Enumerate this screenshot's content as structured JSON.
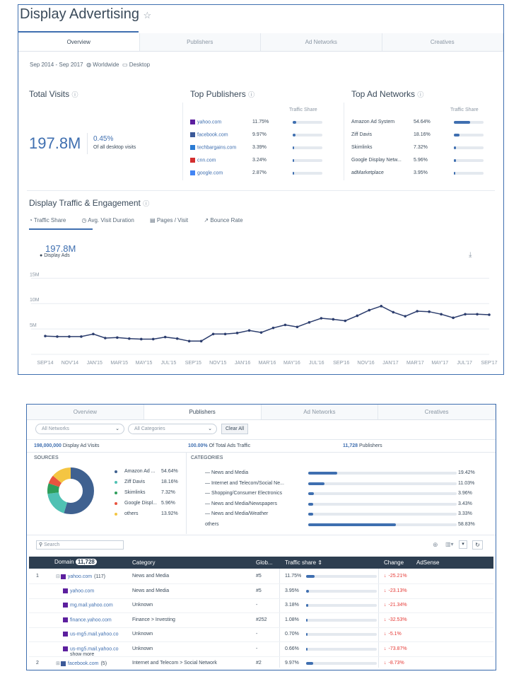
{
  "top": {
    "title": "Display Advertising",
    "tabs": [
      "Overview",
      "Publishers",
      "Ad Networks",
      "Creatives"
    ],
    "filters": {
      "date": "Sep 2014 - Sep 2017",
      "region": "Worldwide",
      "device": "Desktop"
    },
    "total_visits": {
      "title": "Total Visits",
      "value": "197.8M",
      "pct": "0.45%",
      "pct_label": "Of all desktop visits"
    },
    "top_publishers": {
      "title": "Top Publishers",
      "col": "Traffic Share",
      "rows": [
        {
          "name": "yahoo.com",
          "share": "11.75%",
          "fraction": 0.1175,
          "color": "#5c1f9e"
        },
        {
          "name": "facebook.com",
          "share": "9.97%",
          "fraction": 0.0997,
          "color": "#3b5998"
        },
        {
          "name": "techbargains.com",
          "share": "3.39%",
          "fraction": 0.0339,
          "color": "#2a7bd4"
        },
        {
          "name": "cnn.com",
          "share": "3.24%",
          "fraction": 0.0324,
          "color": "#d32f2f"
        },
        {
          "name": "google.com",
          "share": "2.87%",
          "fraction": 0.0287,
          "color": "#4285f4"
        }
      ]
    },
    "top_ad_networks": {
      "title": "Top Ad Networks",
      "col": "Traffic Share",
      "rows": [
        {
          "name": "Amazon Ad System",
          "share": "54.64%",
          "fraction": 0.5464
        },
        {
          "name": "Ziff Davis",
          "share": "18.16%",
          "fraction": 0.1816
        },
        {
          "name": "Skimlinks",
          "share": "7.32%",
          "fraction": 0.0732
        },
        {
          "name": "Google Display Netw...",
          "share": "5.96%",
          "fraction": 0.0596
        },
        {
          "name": "adMarketplace",
          "share": "3.95%",
          "fraction": 0.0395
        }
      ]
    },
    "engagement": {
      "title": "Display Traffic & Engagement",
      "tabs": [
        "Traffic Share",
        "Avg. Visit Duration",
        "Pages / Visit",
        "Bounce Rate"
      ],
      "big_value": "197.8M",
      "legend": "Display Ads"
    }
  },
  "chart_data": {
    "type": "line",
    "title": "",
    "series": [
      {
        "name": "Display Ads",
        "values": [
          3.6,
          3.5,
          3.5,
          3.5,
          4.0,
          3.2,
          3.3,
          3.1,
          3.0,
          3.0,
          3.4,
          3.1,
          2.6,
          2.6,
          4.0,
          4.0,
          4.2,
          4.7,
          4.3,
          5.2,
          5.8,
          5.4,
          6.3,
          7.1,
          6.9,
          6.6,
          7.6,
          8.7,
          9.5,
          8.3,
          7.5,
          8.5,
          8.4,
          7.9,
          7.2,
          7.9,
          7.9,
          7.8
        ]
      }
    ],
    "x_tick_labels": [
      "SEP'14",
      "NOV'14",
      "JAN'15",
      "MAR'15",
      "MAY'15",
      "JUL'15",
      "SEP'15",
      "NOV'15",
      "JAN'16",
      "MAR'16",
      "MAY'16",
      "JUL'16",
      "SEP'16",
      "NOV'16",
      "JAN'17",
      "MAR'17",
      "MAY'17",
      "JUL'17",
      "SEP'17"
    ],
    "y_ticks": [
      {
        "v": 5,
        "label": "5M"
      },
      {
        "v": 10,
        "label": "10M"
      },
      {
        "v": 15,
        "label": "15M"
      }
    ],
    "ylim": [
      0,
      17
    ],
    "grid": true,
    "color": "#2d3e6e"
  },
  "pub": {
    "tabs": [
      "Overview",
      "Publishers",
      "Ad Networks",
      "Creatives"
    ],
    "network_select": "All Networks",
    "category_select": "All Categories",
    "clear": "Clear All",
    "stats": [
      {
        "value": "198,000,000",
        "label": "Display Ad Visits"
      },
      {
        "value": "100.00%",
        "label": "Of Total Ads Traffic"
      },
      {
        "value": "11,728",
        "label": "Publishers"
      }
    ],
    "sources_title": "SOURCES",
    "sources": [
      {
        "name": "Amazon Ad ...",
        "pct": "54.64%",
        "fraction": 0.5464,
        "color": "#3f6190"
      },
      {
        "name": "Ziff Davis",
        "pct": "18.16%",
        "fraction": 0.1816,
        "color": "#4fc1b3"
      },
      {
        "name": "Skimlinks",
        "pct": "7.32%",
        "fraction": 0.0732,
        "color": "#2e9e5b"
      },
      {
        "name": "Google Displ...",
        "pct": "5.96%",
        "fraction": 0.0596,
        "color": "#e8543f"
      },
      {
        "name": "others",
        "pct": "13.92%",
        "fraction": 0.1392,
        "color": "#f4c542"
      }
    ],
    "categories_title": "CATEGORIES",
    "categories": [
      {
        "name": "News and Media",
        "pct": "19.42%",
        "fraction": 0.1942
      },
      {
        "name": "Internet and Telecom/Social Ne...",
        "pct": "11.03%",
        "fraction": 0.1103
      },
      {
        "name": "Shopping/Consumer Electronics",
        "pct": "3.96%",
        "fraction": 0.0396
      },
      {
        "name": "News and Media/Newspapers",
        "pct": "3.43%",
        "fraction": 0.0343
      },
      {
        "name": "News and Media/Weather",
        "pct": "3.33%",
        "fraction": 0.0333
      },
      {
        "name": "others",
        "pct": "58.83%",
        "fraction": 0.5883
      }
    ],
    "search_placeholder": "Search",
    "table": {
      "headers": {
        "domain": "Domain",
        "count": "11,728",
        "category": "Category",
        "glob": "Glob...",
        "share": "Traffic share",
        "change": "Change",
        "adsense": "AdSense"
      },
      "rows": [
        {
          "num": "1",
          "expander": "⊟",
          "domain": "yahoo.com",
          "count": "(117)",
          "category": "News and Media",
          "glob": "#5",
          "share": "11.75%",
          "fraction": 0.1175,
          "change": "-25.21%",
          "sub": false
        },
        {
          "num": "",
          "expander": "",
          "domain": "yahoo.com",
          "count": "",
          "category": "News and Media",
          "glob": "#5",
          "share": "3.95%",
          "fraction": 0.0395,
          "change": "-23.13%",
          "sub": true
        },
        {
          "num": "",
          "expander": "",
          "domain": "mg.mail.yahoo.com",
          "count": "",
          "category": "Unknown",
          "glob": "-",
          "share": "3.18%",
          "fraction": 0.0318,
          "change": "-21.34%",
          "sub": true
        },
        {
          "num": "",
          "expander": "",
          "domain": "finance.yahoo.com",
          "count": "",
          "category": "Finance > Investing",
          "glob": "#252",
          "share": "1.08%",
          "fraction": 0.0108,
          "change": "-32.53%",
          "sub": true
        },
        {
          "num": "",
          "expander": "",
          "domain": "us-mg5.mail.yahoo.co",
          "count": "",
          "category": "Unknown",
          "glob": "-",
          "share": "0.70%",
          "fraction": 0.007,
          "change": "-5.1%",
          "sub": true
        },
        {
          "num": "",
          "expander": "",
          "domain": "us-mg5.mail.yahoo.co",
          "count": "",
          "category": "Unknown",
          "glob": "-",
          "share": "0.66%",
          "fraction": 0.0066,
          "change": "-73.87%",
          "sub": true
        },
        {
          "num": "2",
          "expander": "⊞",
          "domain": "facebook.com",
          "count": "(5)",
          "category": "Internet and Telecom > Social Network",
          "glob": "#2",
          "share": "9.97%",
          "fraction": 0.0997,
          "change": "-8.73%",
          "sub": false
        }
      ],
      "show_more": "show more"
    }
  }
}
